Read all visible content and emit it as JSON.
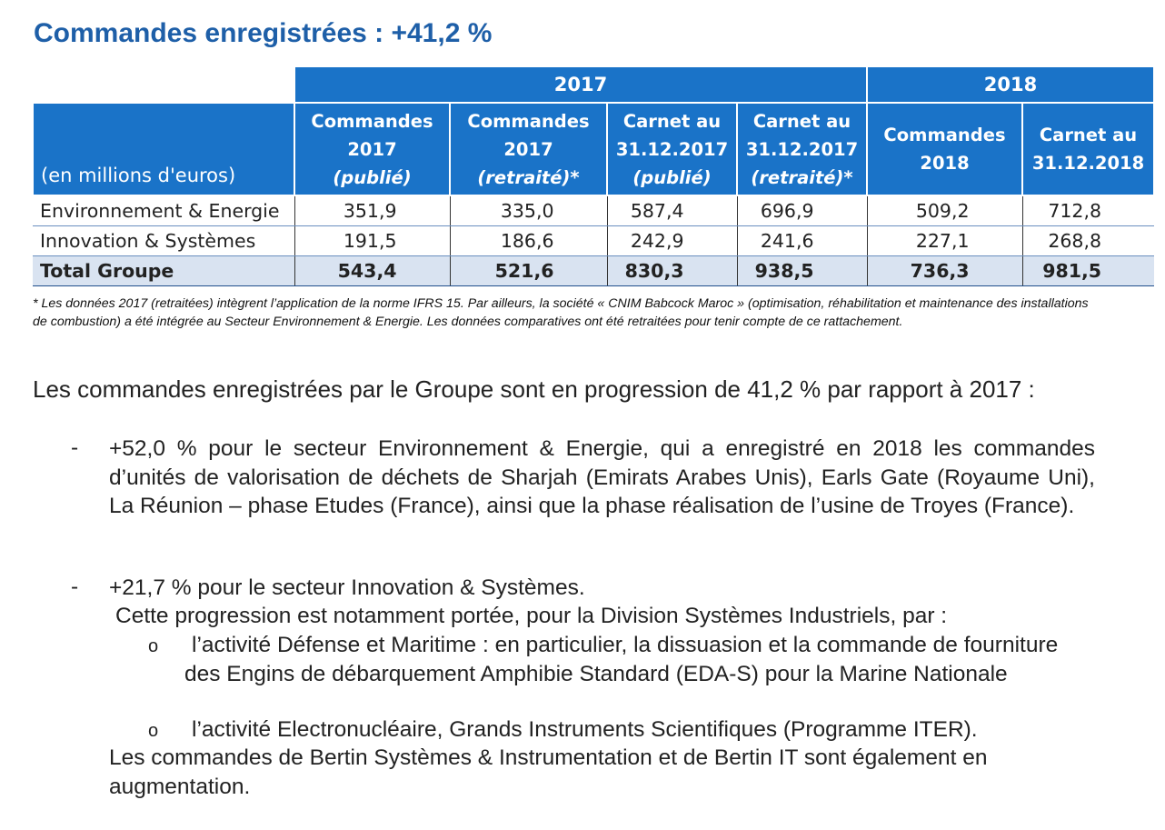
{
  "title": "Commandes enregistrées : +41,2 %",
  "table": {
    "unit_label": "(en millions d'euros)",
    "year_groups": [
      "2017",
      "2018"
    ],
    "columns": [
      {
        "line1": "Commandes",
        "line2": "2017",
        "line3": "(publié)"
      },
      {
        "line1": "Commandes",
        "line2": "2017",
        "line3": "(retraité)*"
      },
      {
        "line1": "Carnet au",
        "line2": "31.12.2017",
        "line3": "(publié)"
      },
      {
        "line1": "Carnet au",
        "line2": "31.12.2017",
        "line3": "(retraité)*"
      },
      {
        "line1": "Commandes",
        "line2": "2018"
      },
      {
        "line1": "Carnet au",
        "line2": "31.12.2018"
      }
    ],
    "rows": [
      {
        "label": "Environnement & Energie",
        "values": [
          "351,9",
          "335,0",
          "587,4",
          "696,9",
          "509,2",
          "712,8"
        ]
      },
      {
        "label": "Innovation & Systèmes",
        "values": [
          "191,5",
          "186,6",
          "242,9",
          "241,6",
          "227,1",
          "268,8"
        ]
      },
      {
        "label": "Total Groupe",
        "values": [
          "543,4",
          "521,6",
          "830,3",
          "938,5",
          "736,3",
          "981,5"
        ]
      }
    ]
  },
  "footnote": "* Les données 2017 (retraitées) intègrent l’application de la norme IFRS 15. Par ailleurs, la société « CNIM Babcock Maroc » (optimisation, réhabilitation et maintenance des installations de combustion) a été intégrée au Secteur Environnement & Energie. Les données comparatives ont été retraitées pour tenir compte de ce rattachement.",
  "intro": "Les commandes enregistrées par le Groupe sont en progression de 41,2 % par rapport à 2017 :",
  "bullets": {
    "dash": "-",
    "circle": "o",
    "b1": "+52,0 % pour le secteur Environnement & Energie, qui a enregistré en 2018 les commandes d’unités de valorisation de déchets de Sharjah (Emirats Arabes Unis), Earls Gate (Royaume Uni), La Réunion – phase Etudes (France), ainsi que la phase réalisation de l’usine de Troyes (France).",
    "b2_line1": "+21,7 % pour le secteur Innovation & Systèmes.",
    "b2_line2": "Cette progression est notamment portée, pour la Division Systèmes Industriels, par :",
    "sub1": "l’activité Défense et Maritime : en particulier, la dissuasion et la commande de fourniture des Engins de débarquement Amphibie Standard (EDA-S) pour la Marine Nationale",
    "sub2": "l’activité Electronucléaire, Grands Instruments Scientifiques (Programme ITER).",
    "b2_closing": "Les commandes de Bertin Systèmes & Instrumentation et de Bertin IT sont également en augmentation."
  }
}
